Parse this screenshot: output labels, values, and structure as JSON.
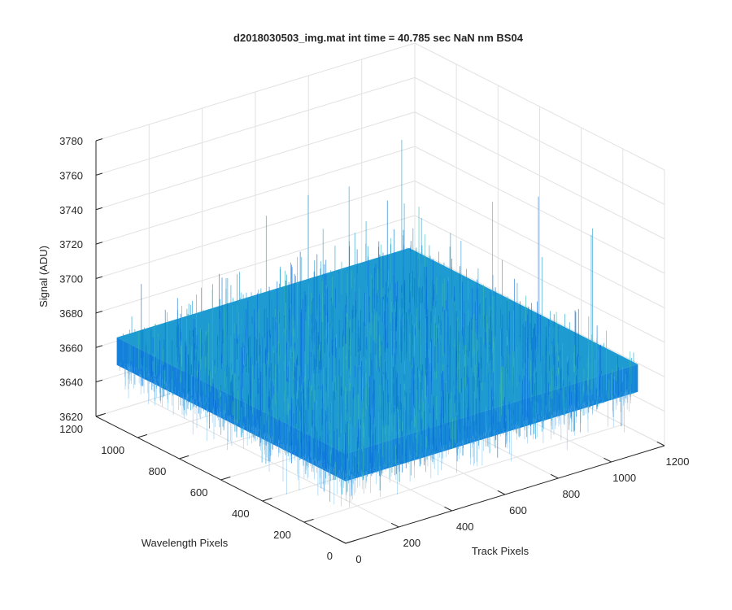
{
  "chart_data": {
    "type": "surface",
    "title": "d2018030503_img.mat int time = 40.785 sec  NaN nm BS04",
    "xlabel": "Track Pixels",
    "ylabel": "Wavelength Pixels",
    "zlabel": "Signal (ADU)",
    "xlim": [
      0,
      1200
    ],
    "ylim": [
      0,
      1200
    ],
    "zlim": [
      3620,
      3780
    ],
    "x_ticks": [
      "0",
      "200",
      "400",
      "600",
      "800",
      "1000",
      "1200"
    ],
    "y_ticks": [
      "0",
      "200",
      "400",
      "600",
      "800",
      "1000",
      "1200"
    ],
    "z_ticks": [
      "3620",
      "3640",
      "3660",
      "3680",
      "3700",
      "3720",
      "3740",
      "3760",
      "3780"
    ],
    "surface": {
      "x_extent": [
        0,
        1100
      ],
      "y_extent": [
        0,
        1100
      ],
      "mean_signal": 3660,
      "typical_min": 3635,
      "typical_max": 3715,
      "occasional_spike_max": 3745
    },
    "grid": true,
    "colors": {
      "surface_dark": "#0a6fd8",
      "surface_mid": "#1e9bd1",
      "surface_light": "#3cb9b0",
      "grid": "#e2e2e2",
      "axis": "#262626"
    }
  }
}
